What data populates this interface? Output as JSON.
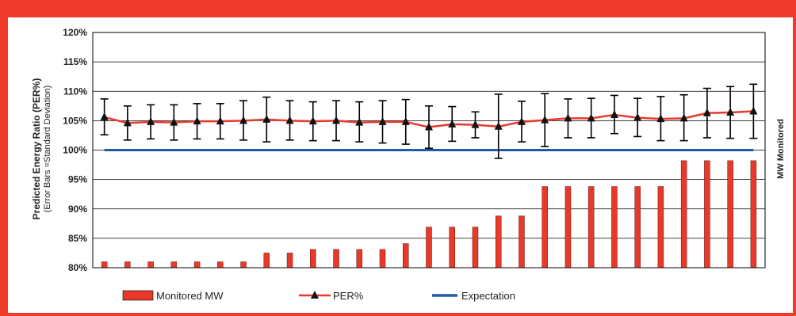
{
  "colors": {
    "frame": "#EE3B2B",
    "bar": "#E8392A",
    "per_line": "#E8392A",
    "marker": "#111111",
    "expectation": "#1F5AA6",
    "grid": "#000000"
  },
  "chart_data": {
    "type": "bar",
    "title": "",
    "ylabel": "Predicted Energy Ratio (PER%)",
    "ylabel_sub": "(Error Bars =Standard Deviation)",
    "y2label": "MW Monitored",
    "ylim": [
      80,
      120
    ],
    "yticks": [
      "120%",
      "115%",
      "110%",
      "105%",
      "100%",
      "95%",
      "90%",
      "85%",
      "80%"
    ],
    "grid": "horizontal",
    "legend_position": "bottom",
    "categories_count": 29,
    "series": [
      {
        "name": "Monitored MW",
        "type": "bar",
        "values": [
          81.0,
          81.0,
          81.0,
          81.0,
          81.0,
          81.0,
          81.0,
          82.5,
          82.5,
          83.1,
          83.1,
          83.1,
          83.1,
          84.1,
          86.9,
          86.9,
          86.9,
          88.8,
          88.8,
          93.8,
          93.8,
          93.8,
          93.8,
          93.8,
          93.8,
          98.2,
          98.2,
          98.2,
          98.2
        ]
      },
      {
        "name": "PER%",
        "type": "line",
        "values": [
          105.6,
          104.6,
          104.8,
          104.7,
          104.9,
          104.9,
          105.0,
          105.2,
          105.0,
          104.9,
          105.0,
          104.7,
          104.8,
          104.8,
          103.9,
          104.4,
          104.3,
          104.0,
          104.8,
          105.1,
          105.4,
          105.4,
          106.0,
          105.5,
          105.3,
          105.4,
          106.3,
          106.4,
          106.6
        ],
        "error_low": [
          102.6,
          101.7,
          101.9,
          101.7,
          101.9,
          101.9,
          101.7,
          101.4,
          101.7,
          101.6,
          101.6,
          101.4,
          101.2,
          101.0,
          100.3,
          101.5,
          102.1,
          98.6,
          101.4,
          100.6,
          102.1,
          102.1,
          102.8,
          102.3,
          101.6,
          101.6,
          102.1,
          102.0,
          102.0
        ],
        "error_high": [
          108.7,
          107.5,
          107.7,
          107.7,
          107.9,
          107.9,
          108.4,
          109.0,
          108.4,
          108.2,
          108.4,
          108.2,
          108.4,
          108.6,
          107.5,
          107.4,
          106.5,
          109.5,
          108.3,
          109.6,
          108.7,
          108.8,
          109.3,
          108.8,
          109.1,
          109.4,
          110.5,
          110.8,
          111.2
        ]
      },
      {
        "name": "Expectation",
        "type": "line",
        "values": [
          100,
          100,
          100,
          100,
          100,
          100,
          100,
          100,
          100,
          100,
          100,
          100,
          100,
          100,
          100,
          100,
          100,
          100,
          100,
          100,
          100,
          100,
          100,
          100,
          100,
          100,
          100,
          100,
          100
        ]
      }
    ]
  },
  "legend": {
    "monitored": "Monitored MW",
    "per": "PER%",
    "expectation": "Expectation"
  }
}
